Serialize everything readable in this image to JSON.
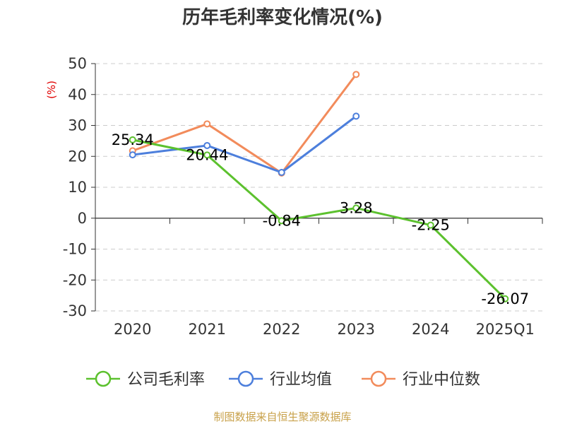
{
  "title": "历年毛利率变化情况(%)",
  "source": "制图数据来自恒生聚源数据库",
  "chart_data": {
    "type": "line",
    "title": "历年毛利率变化情况(%)",
    "ylabel": "(%)",
    "categories": [
      "2020",
      "2021",
      "2022",
      "2023",
      "2024",
      "2025Q1"
    ],
    "yticks": [
      50,
      40,
      30,
      20,
      10,
      0,
      -10,
      -20,
      -30
    ],
    "ylim": [
      -30,
      50
    ],
    "grid": true,
    "legend_position": "bottom",
    "series": [
      {
        "name": "公司毛利率",
        "color": "#5cc12e",
        "show_labels": true,
        "values": [
          25.34,
          20.44,
          -0.84,
          3.28,
          -2.25,
          -26.07
        ],
        "labels": [
          "25.34",
          "20.44",
          "-0.84",
          "3.28",
          "-2.25",
          "-26.07"
        ]
      },
      {
        "name": "行业均值",
        "color": "#4d7fdc",
        "show_labels": false,
        "values": [
          20.5,
          23.5,
          14.8,
          33.0,
          null,
          null
        ]
      },
      {
        "name": "行业中位数",
        "color": "#f28b5b",
        "show_labels": false,
        "values": [
          21.8,
          30.5,
          14.6,
          46.5,
          null,
          null
        ]
      }
    ]
  }
}
